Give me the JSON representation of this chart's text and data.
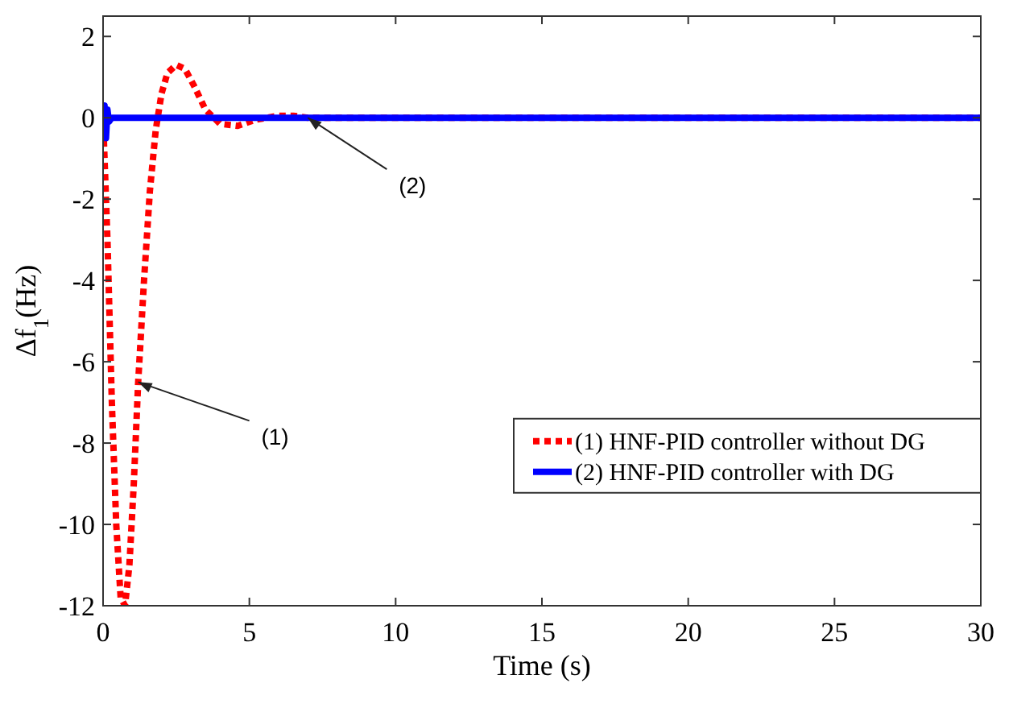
{
  "chart_data": {
    "type": "line",
    "xlabel": "Time (s)",
    "ylabel": "Δf$_{1}$(Hz)",
    "xlim": [
      0,
      30
    ],
    "ylim": [
      -12,
      2.5
    ],
    "xticks": [
      0,
      5,
      10,
      15,
      20,
      25,
      30
    ],
    "yticks": [
      -12,
      -10,
      -8,
      -6,
      -4,
      -2,
      0,
      2
    ],
    "grid": false,
    "legend": "bottom right",
    "series": [
      {
        "name": "(1) HNF-PID controller without DG",
        "color": "#ff0000",
        "line_style": "dotted",
        "x": [
          0,
          0.15,
          0.3,
          0.45,
          0.6,
          0.75,
          0.9,
          1.05,
          1.2,
          1.4,
          1.6,
          1.8,
          2.0,
          2.2,
          2.5,
          2.8,
          3.1,
          3.5,
          4,
          4.6,
          5.2,
          6,
          6.5,
          7,
          30
        ],
        "values": [
          0,
          -3,
          -7,
          -10,
          -11.8,
          -12,
          -11,
          -9,
          -6.5,
          -4,
          -1.8,
          -0.3,
          0.6,
          1.1,
          1.3,
          1.2,
          0.8,
          0.2,
          -0.15,
          -0.2,
          -0.05,
          0.05,
          0.05,
          0,
          0
        ]
      },
      {
        "name": "(2) HNF-PID controller with DG",
        "color": "#0000ff",
        "line_style": "solid",
        "x": [
          0,
          0.05,
          0.1,
          0.15,
          0.2,
          0.3,
          30
        ],
        "values": [
          0,
          0.3,
          -0.5,
          0.2,
          -0.1,
          0,
          0
        ]
      }
    ],
    "annotations": [
      {
        "text": "(1)",
        "x": 1.2,
        "y": -6.5
      },
      {
        "text": "(2)",
        "x": 7,
        "y": 0
      }
    ]
  }
}
